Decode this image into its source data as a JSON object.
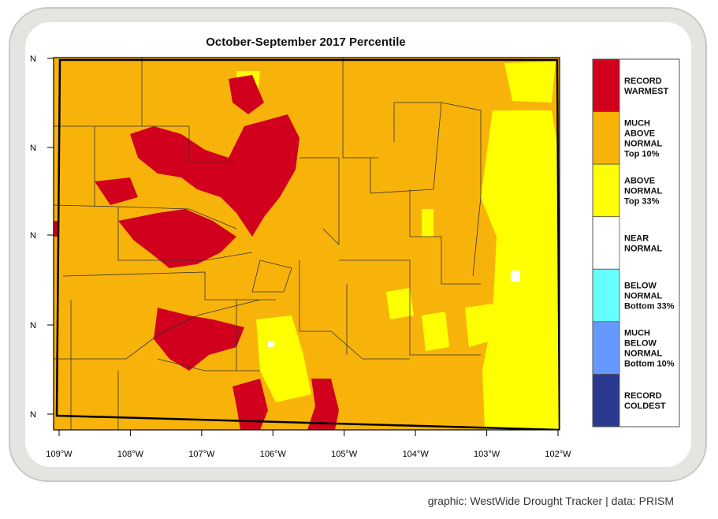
{
  "title": "October-September 2017 Percentile",
  "lon_labels": [
    "109°W",
    "108°W",
    "107°W",
    "106°W",
    "105°W",
    "104°W",
    "103°W",
    "102°W"
  ],
  "lat_labels": [
    "N",
    "N",
    "N",
    "N",
    "N"
  ],
  "legend": [
    {
      "lines": [
        "RECORD",
        "WARMEST"
      ],
      "color": "#d1001c"
    },
    {
      "lines": [
        "MUCH",
        "ABOVE",
        "NORMAL",
        "Top 10%"
      ],
      "color": "#f8b30a"
    },
    {
      "lines": [
        "ABOVE",
        "NORMAL",
        "Top 33%"
      ],
      "color": "#ffff00"
    },
    {
      "lines": [
        "NEAR",
        "NORMAL"
      ],
      "color": "#ffffff"
    },
    {
      "lines": [
        "BELOW",
        "NORMAL",
        "Bottom 33%"
      ],
      "color": "#66ffff"
    },
    {
      "lines": [
        "MUCH",
        "BELOW",
        "NORMAL",
        "Bottom 10%"
      ],
      "color": "#6699ff"
    },
    {
      "lines": [
        "RECORD",
        "COLDEST"
      ],
      "color": "#2b3990"
    }
  ],
  "credit": "graphic: WestWide Drought Tracker | data: PRISM"
}
